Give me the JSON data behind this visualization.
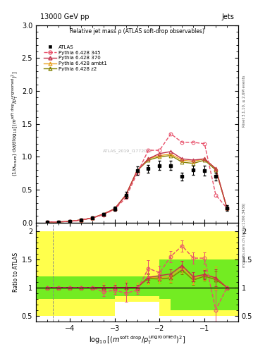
{
  "title_top": "13000 GeV pp",
  "title_right": "Jets",
  "plot_title": "Relative jet mass ρ (ATLAS soft-drop observables)",
  "watermark": "ATLAS_2019_I1772062",
  "right_label_top": "Rivet 3.1.10, ≥ 2.6M events",
  "right_label_bottom": "mcplots.cern.ch [arXiv:1306.3436]",
  "xmin": -4.75,
  "xmax": -0.25,
  "ymin": 0.0,
  "ymax": 3.0,
  "ratio_ymin": 0.4,
  "ratio_ymax": 2.15,
  "x_ticks": [
    -4,
    -3,
    -2,
    -1
  ],
  "atlas_x": [
    -4.5,
    -4.25,
    -4.0,
    -3.75,
    -3.5,
    -3.25,
    -3.0,
    -2.75,
    -2.5,
    -2.25,
    -2.0,
    -1.75,
    -1.5,
    -1.25,
    -1.0,
    -0.75,
    -0.5
  ],
  "atlas_y": [
    0.01,
    0.01,
    0.02,
    0.04,
    0.07,
    0.13,
    0.21,
    0.42,
    0.79,
    0.82,
    0.87,
    0.87,
    0.7,
    0.8,
    0.79,
    0.7,
    0.22
  ],
  "atlas_yerr_lo": [
    0.003,
    0.003,
    0.005,
    0.008,
    0.012,
    0.02,
    0.03,
    0.05,
    0.06,
    0.06,
    0.07,
    0.07,
    0.06,
    0.07,
    0.07,
    0.06,
    0.04
  ],
  "atlas_yerr_hi": [
    0.003,
    0.003,
    0.005,
    0.008,
    0.012,
    0.02,
    0.03,
    0.05,
    0.06,
    0.06,
    0.07,
    0.07,
    0.06,
    0.07,
    0.07,
    0.06,
    0.04
  ],
  "p345_y": [
    0.01,
    0.01,
    0.02,
    0.04,
    0.07,
    0.12,
    0.2,
    0.38,
    0.75,
    1.1,
    1.1,
    1.35,
    1.22,
    1.22,
    1.2,
    0.42,
    0.22
  ],
  "p370_y": [
    0.01,
    0.01,
    0.02,
    0.04,
    0.07,
    0.13,
    0.21,
    0.42,
    0.79,
    0.97,
    1.05,
    1.08,
    0.97,
    0.95,
    0.97,
    0.82,
    0.22
  ],
  "pambt1_y": [
    0.01,
    0.01,
    0.02,
    0.04,
    0.07,
    0.13,
    0.21,
    0.42,
    0.79,
    0.97,
    1.02,
    1.04,
    0.95,
    0.93,
    0.97,
    0.82,
    0.22
  ],
  "pz2_y": [
    0.01,
    0.01,
    0.02,
    0.04,
    0.07,
    0.13,
    0.21,
    0.42,
    0.79,
    0.95,
    1.0,
    1.02,
    0.92,
    0.9,
    0.95,
    0.8,
    0.22
  ],
  "atlas_color": "#000000",
  "p345_color": "#e8506a",
  "p370_color": "#c0304a",
  "pambt1_color": "#e8a020",
  "pz2_color": "#808000",
  "ratio_p345": [
    1.0,
    1.0,
    1.0,
    1.0,
    1.0,
    0.92,
    0.95,
    0.9,
    0.95,
    1.34,
    1.26,
    1.55,
    1.74,
    1.52,
    1.52,
    0.6,
    1.0
  ],
  "ratio_p370": [
    1.0,
    1.0,
    1.0,
    1.0,
    1.0,
    1.0,
    1.0,
    1.0,
    1.0,
    1.18,
    1.21,
    1.24,
    1.39,
    1.19,
    1.23,
    1.17,
    1.0
  ],
  "ratio_pambt1": [
    1.0,
    1.0,
    1.0,
    1.0,
    1.0,
    1.0,
    1.0,
    1.0,
    1.0,
    1.18,
    1.17,
    1.2,
    1.36,
    1.16,
    1.23,
    1.17,
    1.0
  ],
  "ratio_pz2": [
    1.0,
    1.0,
    1.0,
    1.0,
    1.0,
    1.0,
    1.0,
    1.0,
    1.0,
    1.16,
    1.15,
    1.17,
    1.31,
    1.13,
    1.2,
    1.14,
    1.0
  ],
  "ratio_p345_err_lo": [
    0.0,
    0.0,
    0.0,
    0.0,
    0.0,
    0.08,
    0.07,
    0.15,
    0.07,
    0.15,
    0.12,
    0.1,
    0.1,
    0.1,
    0.1,
    0.35,
    0.0
  ],
  "ratio_p345_err_hi": [
    0.0,
    0.0,
    0.0,
    0.0,
    0.0,
    0.08,
    0.07,
    0.15,
    0.07,
    0.15,
    0.12,
    0.1,
    0.1,
    0.1,
    0.1,
    0.35,
    0.0
  ],
  "ratio_p370_err_lo": [
    0.0,
    0.0,
    0.0,
    0.0,
    0.0,
    0.05,
    0.05,
    0.08,
    0.05,
    0.08,
    0.08,
    0.08,
    0.08,
    0.08,
    0.08,
    0.15,
    0.0
  ],
  "ratio_p370_err_hi": [
    0.0,
    0.0,
    0.0,
    0.0,
    0.0,
    0.05,
    0.05,
    0.08,
    0.05,
    0.08,
    0.08,
    0.08,
    0.08,
    0.08,
    0.08,
    0.15,
    0.0
  ],
  "ratio_pambt1_err_lo": [
    0.0,
    0.0,
    0.0,
    0.0,
    0.0,
    0.08,
    0.08,
    0.12,
    0.08,
    0.12,
    0.1,
    0.1,
    0.1,
    0.1,
    0.1,
    0.2,
    0.0
  ],
  "ratio_pambt1_err_hi": [
    0.0,
    0.0,
    0.0,
    0.0,
    0.0,
    0.08,
    0.08,
    0.12,
    0.08,
    0.12,
    0.1,
    0.1,
    0.1,
    0.1,
    0.1,
    0.2,
    0.0
  ],
  "ratio_pz2_err_lo": [
    0.0,
    0.0,
    0.0,
    0.0,
    0.0,
    0.05,
    0.05,
    0.08,
    0.05,
    0.08,
    0.08,
    0.08,
    0.08,
    0.08,
    0.08,
    0.15,
    0.0
  ],
  "ratio_pz2_err_hi": [
    0.0,
    0.0,
    0.0,
    0.0,
    0.0,
    0.05,
    0.05,
    0.08,
    0.05,
    0.08,
    0.08,
    0.08,
    0.08,
    0.08,
    0.08,
    0.15,
    0.0
  ],
  "band_x_edges": [
    -4.75,
    -4.5,
    -4.25,
    -4.0,
    -3.75,
    -3.5,
    -3.25,
    -3.0,
    -2.75,
    -2.5,
    -2.25,
    -2.0,
    -1.75,
    -1.5,
    -1.25,
    -1.0,
    -0.75,
    -0.5,
    -0.25
  ],
  "band_yellow_lo": [
    0.5,
    0.5,
    0.5,
    0.5,
    0.5,
    0.5,
    0.5,
    0.75,
    0.75,
    0.75,
    0.75,
    0.5,
    0.5,
    0.5,
    0.5,
    0.5,
    0.5,
    0.5
  ],
  "band_yellow_hi": [
    2.0,
    2.0,
    2.0,
    2.0,
    2.0,
    2.0,
    2.0,
    2.0,
    2.0,
    2.0,
    2.0,
    2.0,
    2.0,
    2.0,
    2.0,
    2.0,
    2.0,
    2.0
  ],
  "band_green_lo": [
    0.8,
    0.8,
    0.8,
    0.8,
    0.8,
    0.8,
    0.8,
    0.85,
    0.85,
    0.85,
    0.85,
    0.8,
    0.6,
    0.6,
    0.6,
    0.6,
    0.6,
    0.6
  ],
  "band_green_hi": [
    1.2,
    1.2,
    1.2,
    1.2,
    1.2,
    1.2,
    1.2,
    1.2,
    1.2,
    1.2,
    1.2,
    1.5,
    1.5,
    1.5,
    1.5,
    1.5,
    1.5,
    1.5
  ],
  "vline_x": -4.375
}
